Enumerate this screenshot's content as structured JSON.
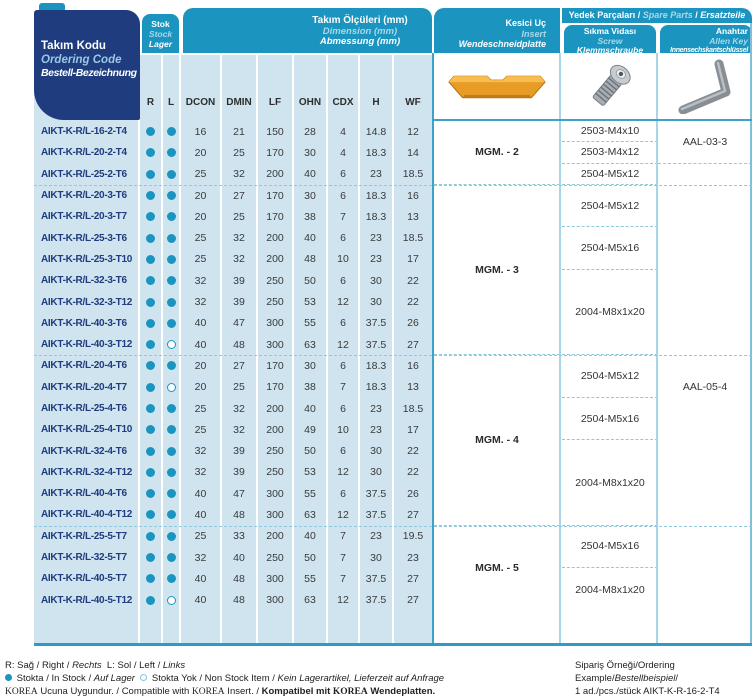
{
  "table": {
    "code_header": {
      "l1": "Takım Kodu",
      "l2": "Ordering Code",
      "l3": "Bestell-Bezeichnung"
    },
    "stock_header": {
      "l1": "Stok",
      "l2": "Stock",
      "l3": "Lager"
    },
    "dimension_header": {
      "l1": "Takım Ölçüleri (mm)",
      "l2": "Dimension (mm)",
      "l3": "Abmessung (mm)"
    },
    "insert_header": {
      "l1": "Kesici Uç",
      "l2": "Insert",
      "l3": "Wendeschneidplatte"
    },
    "screw_header": {
      "l1": "Sıkma Vidası",
      "l2": "Screw",
      "l3": "Klemmschraube"
    },
    "key_header": {
      "l1": "Anahtar",
      "l2": "Allen Key",
      "l3": "Innensechskantschlüssel"
    },
    "spare_parts_bar": [
      {
        "t": "Yedek Parçaları / "
      },
      {
        "t": "Spare Parts",
        "s": "ilt"
      },
      {
        "t": " / "
      },
      {
        "t": "Ersatzteile",
        "s": "bi"
      }
    ],
    "columns": [
      "R",
      "L",
      "DCON",
      "DMIN",
      "LF",
      "OHN",
      "CDX",
      "H",
      "WF"
    ],
    "rows": [
      [
        "AIKT-K-R/L-16-2-T4",
        "f",
        "f",
        "16",
        "21",
        "150",
        "28",
        "4",
        "14.8",
        "12"
      ],
      [
        "AIKT-K-R/L-20-2-T4",
        "f",
        "f",
        "20",
        "25",
        "170",
        "30",
        "4",
        "18.3",
        "14"
      ],
      [
        "AIKT-K-R/L-25-2-T6",
        "f",
        "f",
        "25",
        "32",
        "200",
        "40",
        "6",
        "23",
        "18.5"
      ],
      [
        "AIKT-K-R/L-20-3-T6",
        "f",
        "f",
        "20",
        "27",
        "170",
        "30",
        "6",
        "18.3",
        "16"
      ],
      [
        "AIKT-K-R/L-20-3-T7",
        "f",
        "f",
        "20",
        "25",
        "170",
        "38",
        "7",
        "18.3",
        "13"
      ],
      [
        "AIKT-K-R/L-25-3-T6",
        "f",
        "f",
        "25",
        "32",
        "200",
        "40",
        "6",
        "23",
        "18.5"
      ],
      [
        "AIKT-K-R/L-25-3-T10",
        "f",
        "f",
        "25",
        "32",
        "200",
        "48",
        "10",
        "23",
        "17"
      ],
      [
        "AIKT-K-R/L-32-3-T6",
        "f",
        "f",
        "32",
        "39",
        "250",
        "50",
        "6",
        "30",
        "22"
      ],
      [
        "AIKT-K-R/L-32-3-T12",
        "f",
        "f",
        "32",
        "39",
        "250",
        "53",
        "12",
        "30",
        "22"
      ],
      [
        "AIKT-K-R/L-40-3-T6",
        "f",
        "f",
        "40",
        "47",
        "300",
        "55",
        "6",
        "37.5",
        "26"
      ],
      [
        "AIKT-K-R/L-40-3-T12",
        "f",
        "o",
        "40",
        "48",
        "300",
        "63",
        "12",
        "37.5",
        "27"
      ],
      [
        "AIKT-K-R/L-20-4-T6",
        "f",
        "f",
        "20",
        "27",
        "170",
        "30",
        "6",
        "18.3",
        "16"
      ],
      [
        "AIKT-K-R/L-20-4-T7",
        "f",
        "o",
        "20",
        "25",
        "170",
        "38",
        "7",
        "18.3",
        "13"
      ],
      [
        "AIKT-K-R/L-25-4-T6",
        "f",
        "f",
        "25",
        "32",
        "200",
        "40",
        "6",
        "23",
        "18.5"
      ],
      [
        "AIKT-K-R/L-25-4-T10",
        "f",
        "f",
        "25",
        "32",
        "200",
        "49",
        "10",
        "23",
        "17"
      ],
      [
        "AIKT-K-R/L-32-4-T6",
        "f",
        "f",
        "32",
        "39",
        "250",
        "50",
        "6",
        "30",
        "22"
      ],
      [
        "AIKT-K-R/L-32-4-T12",
        "f",
        "f",
        "32",
        "39",
        "250",
        "53",
        "12",
        "30",
        "22"
      ],
      [
        "AIKT-K-R/L-40-4-T6",
        "f",
        "f",
        "40",
        "47",
        "300",
        "55",
        "6",
        "37.5",
        "26"
      ],
      [
        "AIKT-K-R/L-40-4-T12",
        "f",
        "f",
        "40",
        "48",
        "300",
        "63",
        "12",
        "37.5",
        "27"
      ],
      [
        "AIKT-K-R/L-25-5-T7",
        "f",
        "f",
        "25",
        "33",
        "200",
        "40",
        "7",
        "23",
        "19.5"
      ],
      [
        "AIKT-K-R/L-32-5-T7",
        "f",
        "f",
        "32",
        "40",
        "250",
        "50",
        "7",
        "30",
        "23"
      ],
      [
        "AIKT-K-R/L-40-5-T7",
        "f",
        "f",
        "40",
        "48",
        "300",
        "55",
        "7",
        "37.5",
        "27"
      ],
      [
        "AIKT-K-R/L-40-5-T12",
        "f",
        "o",
        "40",
        "48",
        "300",
        "63",
        "12",
        "37.5",
        "27"
      ]
    ],
    "group_separators_after_rows": [
      3,
      11,
      19
    ],
    "insert_groups": [
      [
        "MGM. - 2",
        3
      ],
      [
        "MGM. - 3",
        8
      ],
      [
        "MGM. - 4",
        8
      ],
      [
        "MGM. - 5",
        4
      ]
    ],
    "screw_groups": [
      [
        "2503-M4x10",
        1
      ],
      [
        "2503-M4x12",
        1
      ],
      [
        "2504-M5x12",
        1
      ],
      [
        "2504-M5x12",
        2
      ],
      [
        "2504-M5x16",
        2
      ],
      [
        "2004-M8x1x20",
        4
      ],
      [
        "2504-M5x12",
        2
      ],
      [
        "2504-M5x16",
        2
      ],
      [
        "2004-M8x1x20",
        4
      ],
      [
        "2504-M5x16",
        2
      ],
      [
        "2004-M8x1x20",
        2
      ]
    ],
    "key_groups": [
      [
        "AAL-03-3",
        2
      ],
      [
        "AAL-05-4",
        21
      ]
    ]
  },
  "icons": {
    "insert": "grooving-insert-photo",
    "screw": "torx-clamping-screw-photo",
    "key": "allen-key-photo"
  },
  "colors": {
    "teal": "#1b95c0",
    "navy": "#1e3c7e",
    "cell_blue": "#cfe4ef",
    "insert_gold": "#e89c25"
  },
  "footer": {
    "line1": [
      {
        "t": "R: Sağ / Right / "
      },
      {
        "t": "Rechts",
        "s": "i"
      },
      {
        "t": "  L: Sol / Left / "
      },
      {
        "t": "Links",
        "s": "i"
      }
    ],
    "line2": [
      {
        "t": "",
        "s": "fdot"
      },
      {
        "t": " Stokta / In Stock / "
      },
      {
        "t": "Auf Lager",
        "s": "i"
      },
      {
        "t": "  "
      },
      {
        "t": "",
        "s": "fdoto"
      },
      {
        "t": " Stokta Yok / Non Stock Item / "
      },
      {
        "t": "Kein Lagerartikel, Lieferzeit auf Anfrage",
        "s": "i"
      }
    ],
    "line3": [
      {
        "t": "KOREA",
        "s": "serif"
      },
      {
        "t": " Ucuna Uygundur. / Compatible with "
      },
      {
        "t": "KOREA",
        "s": "serif"
      },
      {
        "t": " Insert. / "
      },
      {
        "t": "Kompatibel mit ",
        "s": "b"
      },
      {
        "t": "KOREA",
        "s": "serifb"
      },
      {
        "t": " Wendeplatten.",
        "s": "b"
      }
    ]
  },
  "ordering_example": {
    "line1": [
      {
        "t": "Sipariş Örneği/Ordering Example/"
      },
      {
        "t": "Bestellbeispiel",
        "s": "i"
      },
      {
        "t": "/"
      }
    ],
    "line2": [
      {
        "t": "1 ad./pcs./stück AIKT-K-R-16-2-T4"
      }
    ]
  }
}
